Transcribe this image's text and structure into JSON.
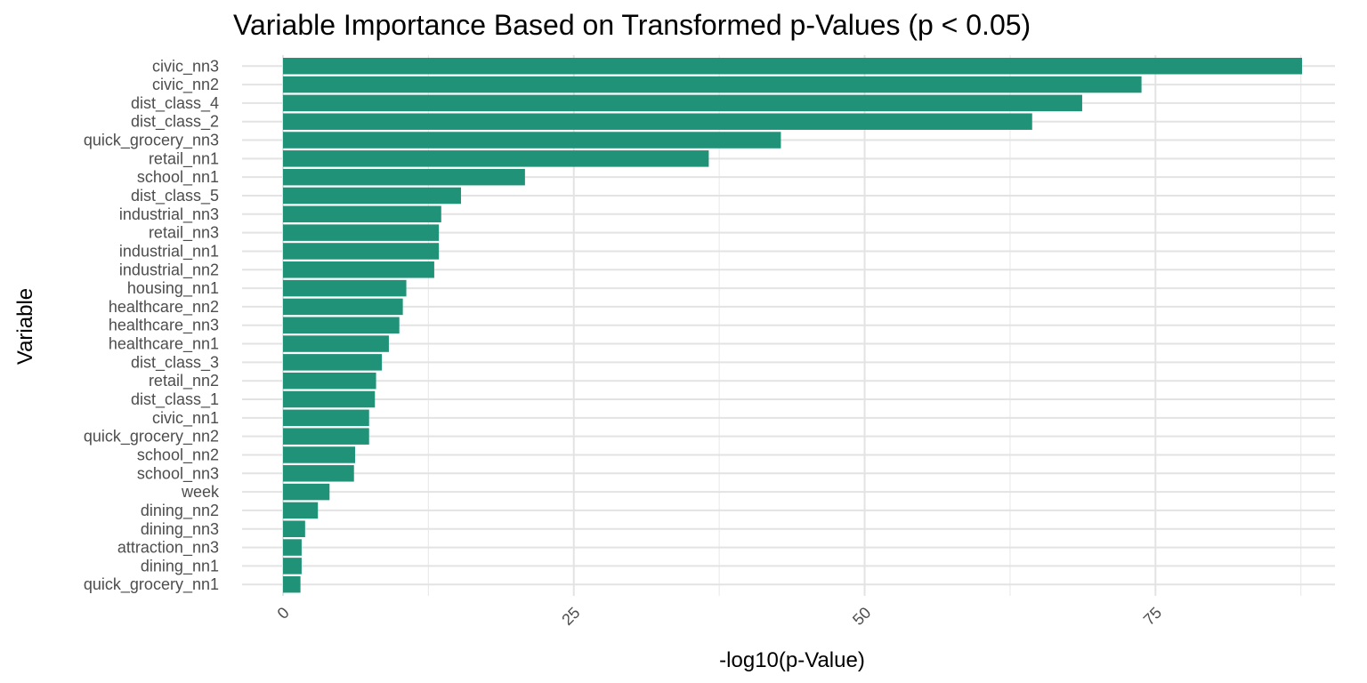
{
  "chart_data": {
    "type": "bar",
    "orientation": "horizontal",
    "title": "Variable Importance Based on Transformed p-Values (p < 0.05)",
    "xlabel": "-log10(p-Value)",
    "ylabel": "Variable",
    "xlim": [
      0,
      87.6
    ],
    "xticks": [
      0,
      25,
      50,
      75
    ],
    "grid": true,
    "bar_color": "#1f9278",
    "categories": [
      "civic_nn3",
      "civic_nn2",
      "dist_class_4",
      "dist_class_2",
      "quick_grocery_nn3",
      "retail_nn1",
      "school_nn1",
      "dist_class_5",
      "industrial_nn3",
      "retail_nn3",
      "industrial_nn1",
      "industrial_nn2",
      "housing_nn1",
      "healthcare_nn2",
      "healthcare_nn3",
      "healthcare_nn1",
      "dist_class_3",
      "retail_nn2",
      "dist_class_1",
      "civic_nn1",
      "quick_grocery_nn2",
      "school_nn2",
      "school_nn3",
      "week",
      "dining_nn2",
      "dining_nn3",
      "attraction_nn3",
      "dining_nn1",
      "quick_grocery_nn1"
    ],
    "values": [
      87.6,
      73.8,
      68.7,
      64.4,
      42.8,
      36.6,
      20.8,
      15.3,
      13.6,
      13.4,
      13.4,
      13.0,
      10.6,
      10.3,
      10.0,
      9.1,
      8.5,
      8.0,
      7.9,
      7.4,
      7.4,
      6.2,
      6.1,
      4.0,
      3.0,
      1.9,
      1.6,
      1.6,
      1.5
    ]
  }
}
